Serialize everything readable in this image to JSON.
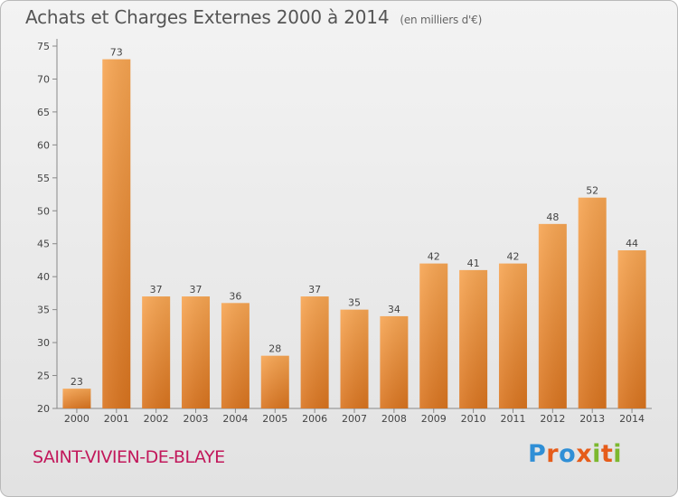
{
  "title": "Achats et Charges Externes 2000 à 2014",
  "subtitle": "(en milliers d'€)",
  "place_name": "SAINT-VIVIEN-DE-BLAYE",
  "brand": {
    "text": "Proxiti",
    "colors": [
      "#2f8fd6",
      "#e65c1a",
      "#2f8fd6",
      "#e65c1a",
      "#7cb82f",
      "#e65c1a",
      "#7cb82f"
    ]
  },
  "colors": {
    "bar_top": "#f7a552",
    "bar_bottom": "#d9741f",
    "place": "#c2185b"
  },
  "chart_data": {
    "type": "bar",
    "title": "Achats et Charges Externes 2000 à 2014",
    "subtitle": "(en milliers d'€)",
    "xlabel": "",
    "ylabel": "",
    "categories": [
      "2000",
      "2001",
      "2002",
      "2003",
      "2004",
      "2005",
      "2006",
      "2007",
      "2008",
      "2009",
      "2010",
      "2011",
      "2012",
      "2013",
      "2014"
    ],
    "values": [
      23,
      73,
      37,
      37,
      36,
      28,
      37,
      35,
      34,
      42,
      41,
      42,
      48,
      52,
      44
    ],
    "ylim": [
      20,
      75
    ],
    "yticks": [
      20,
      25,
      30,
      35,
      40,
      45,
      50,
      55,
      60,
      65,
      70,
      75
    ],
    "grid": false,
    "data_labels": true
  }
}
